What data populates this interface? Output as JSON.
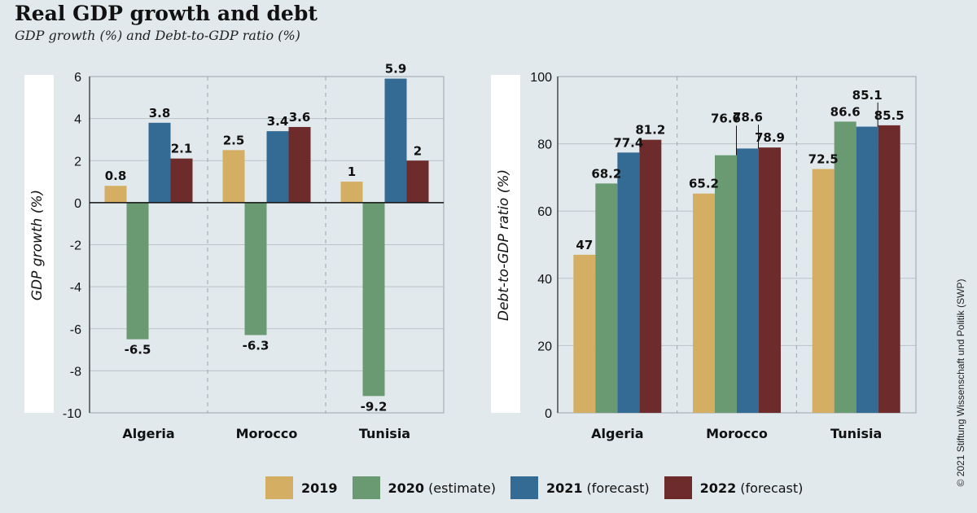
{
  "title": "Real GDP growth and debt",
  "subtitle": "GDP growth (%) and Debt-to-GDP ratio (%)",
  "credit": "© 2021 Stiftung Wissenschaft und Politik (SWP)",
  "legend": [
    {
      "year": "2019",
      "note": "",
      "color": "#d4ae62"
    },
    {
      "year": "2020",
      "note": "(estimate)",
      "color": "#6a9a72"
    },
    {
      "year": "2021",
      "note": "(forecast)",
      "color": "#336b94"
    },
    {
      "year": "2022",
      "note": "(forecast)",
      "color": "#6e2b2b"
    }
  ],
  "chart_data": [
    {
      "type": "bar",
      "ylabel": "GDP growth (%)",
      "ylim": [
        -10,
        6
      ],
      "yticks": [
        6,
        4,
        2,
        0,
        -2,
        -4,
        -6,
        -8,
        -10
      ],
      "grid": true,
      "categories": [
        "Algeria",
        "Morocco",
        "Tunisia"
      ],
      "series": [
        {
          "name": "2019",
          "values": [
            0.8,
            2.5,
            1
          ]
        },
        {
          "name": "2020 (estimate)",
          "values": [
            -6.5,
            -6.3,
            -9.2
          ]
        },
        {
          "name": "2021 (forecast)",
          "values": [
            3.8,
            3.4,
            5.9
          ]
        },
        {
          "name": "2022 (forecast)",
          "values": [
            2.1,
            3.6,
            2
          ]
        }
      ]
    },
    {
      "type": "bar",
      "ylabel": "Debt-to-GDP ratio (%)",
      "ylim": [
        0,
        100
      ],
      "yticks": [
        100,
        80,
        60,
        40,
        20,
        0
      ],
      "grid": true,
      "categories": [
        "Algeria",
        "Morocco",
        "Tunisia"
      ],
      "series": [
        {
          "name": "2019",
          "values": [
            47,
            65.2,
            72.5
          ]
        },
        {
          "name": "2020 (estimate)",
          "values": [
            68.2,
            76.6,
            86.6
          ]
        },
        {
          "name": "2021 (forecast)",
          "values": [
            77.4,
            78.6,
            85.1
          ]
        },
        {
          "name": "2022 (forecast)",
          "values": [
            81.2,
            78.9,
            85.5
          ]
        }
      ]
    }
  ]
}
